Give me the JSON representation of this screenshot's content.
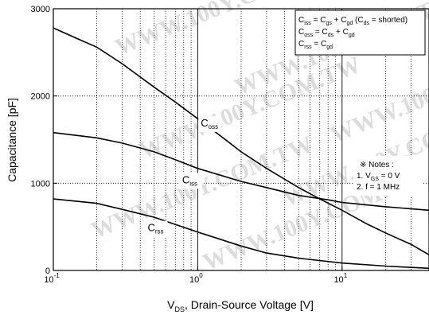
{
  "chart_data": {
    "type": "line",
    "x_scale": "log",
    "xlim": [
      0.1,
      40
    ],
    "ylim": [
      0,
      3000
    ],
    "xlabel": {
      "main": "V",
      "sub": "DS",
      "rest": ", Drain-Source Voltage [V]"
    },
    "ylabel": "Capacitance [pF]",
    "y_ticks": [
      0,
      1000,
      2000,
      3000
    ],
    "x_ticks": [
      {
        "value": 0.1,
        "base": "10",
        "exp": "-1"
      },
      {
        "value": 1,
        "base": "10",
        "exp": "0"
      },
      {
        "value": 10,
        "base": "10",
        "exp": "1"
      }
    ],
    "series": [
      {
        "key": "coss",
        "name": "C",
        "name_sub": "oss",
        "label_at": [
          1.05,
          1650
        ],
        "points": [
          [
            0.1,
            2780
          ],
          [
            0.15,
            2650
          ],
          [
            0.2,
            2560
          ],
          [
            0.3,
            2370
          ],
          [
            0.5,
            2100
          ],
          [
            0.7,
            1930
          ],
          [
            1,
            1740
          ],
          [
            1.5,
            1520
          ],
          [
            2,
            1360
          ],
          [
            3,
            1170
          ],
          [
            5,
            950
          ],
          [
            7,
            820
          ],
          [
            10,
            690
          ],
          [
            15,
            530
          ],
          [
            20,
            430
          ],
          [
            30,
            300
          ],
          [
            40,
            180
          ]
        ]
      },
      {
        "key": "ciss",
        "name": "C",
        "name_sub": "iss",
        "label_at": [
          0.78,
          1000
        ],
        "points": [
          [
            0.1,
            1580
          ],
          [
            0.2,
            1520
          ],
          [
            0.3,
            1460
          ],
          [
            0.5,
            1360
          ],
          [
            0.7,
            1270
          ],
          [
            1,
            1170
          ],
          [
            2,
            1020
          ],
          [
            3,
            950
          ],
          [
            5,
            860
          ],
          [
            8,
            810
          ],
          [
            10,
            780
          ],
          [
            20,
            730
          ],
          [
            40,
            690
          ]
        ]
      },
      {
        "key": "crss",
        "name": "C",
        "name_sub": "rss",
        "label_at": [
          0.45,
          450
        ],
        "points": [
          [
            0.1,
            820
          ],
          [
            0.2,
            770
          ],
          [
            0.3,
            700
          ],
          [
            0.5,
            610
          ],
          [
            1,
            440
          ],
          [
            2,
            280
          ],
          [
            3,
            200
          ],
          [
            5,
            140
          ],
          [
            10,
            85
          ],
          [
            20,
            50
          ],
          [
            40,
            25
          ]
        ]
      }
    ],
    "legend": {
      "position": "top-right",
      "lines": [
        [
          [
            "C",
            "iss"
          ],
          [
            " = "
          ],
          [
            "C",
            "gs"
          ],
          [
            " + "
          ],
          [
            "C",
            "gd"
          ],
          [
            " ("
          ],
          [
            "C",
            "ds"
          ],
          [
            " = shorted)"
          ]
        ],
        [
          [
            "C",
            "oss"
          ],
          [
            " = "
          ],
          [
            "C",
            "ds"
          ],
          [
            " + "
          ],
          [
            "C",
            "gd"
          ]
        ],
        [
          [
            "C",
            "rss"
          ],
          [
            " = "
          ],
          [
            "C",
            "gd"
          ]
        ]
      ]
    },
    "notes": {
      "position": "right",
      "lines": [
        [
          [
            "※ Notes :"
          ]
        ],
        [
          [
            "1. "
          ],
          [
            "V",
            "GS"
          ],
          [
            " = 0 V"
          ]
        ],
        [
          [
            "2. f = 1 MHz"
          ]
        ]
      ]
    },
    "grid": "dotted",
    "watermark": "WWW.100Y.COM.TW"
  }
}
